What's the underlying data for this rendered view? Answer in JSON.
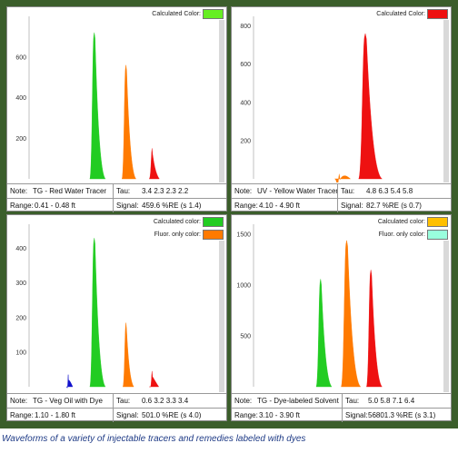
{
  "caption": "Waveforms of a variety of injectable tracers and remedies labeled with dyes",
  "colors": {
    "frame": "#3b5e2b",
    "caption": "#1f3b86",
    "green": "#22cc22",
    "orange": "#ff7a00",
    "red": "#ee1111",
    "blue": "#1111cc",
    "yellow": "#ffc000",
    "cyan": "#99ffdd"
  },
  "panels": [
    {
      "id": "p1",
      "labels": [
        {
          "text": "Calculated Color:",
          "color": "#66ee22"
        }
      ],
      "note_label": "Note:",
      "note": "TG - Red Water Tracer",
      "tau_label": "Tau:",
      "tau": "3.4  2.3  2.3  2.2",
      "range_label": "Range:",
      "range": "0.41 - 0.48 ft",
      "signal_label": "Signal:",
      "signal": "459.6 %RE (s 1.4)",
      "chart_data": {
        "type": "area",
        "yticks": [
          "200",
          "400",
          "600"
        ],
        "ylim": [
          0,
          800
        ],
        "peaks": [
          {
            "color": "#22cc22",
            "center": 0.35,
            "height": 720,
            "width": 0.02
          },
          {
            "color": "#ff7a00",
            "center": 0.52,
            "height": 560,
            "width": 0.018
          },
          {
            "color": "#ee1111",
            "center": 0.66,
            "height": 150,
            "width": 0.013
          }
        ]
      }
    },
    {
      "id": "p2",
      "labels": [
        {
          "text": "Calculated Color:",
          "color": "#ee1111"
        }
      ],
      "note_label": "Note:",
      "note": "UV - Yellow Water Tracer",
      "tau_label": "Tau:",
      "tau": "4.8  6.3  5.4  5.8",
      "range_label": "Range:",
      "range": "4.10 - 4.90 ft",
      "signal_label": "Signal:",
      "signal": "82.7 %RE (s 0.7)",
      "chart_data": {
        "type": "area",
        "yticks": [
          "200",
          "400",
          "600",
          "800"
        ],
        "ylim": [
          0,
          850
        ],
        "peaks": [
          {
            "color": "#ff7a00",
            "center": 0.46,
            "height": 25,
            "width": 0.02
          },
          {
            "color": "#ee1111",
            "center": 0.6,
            "height": 760,
            "width": 0.03
          }
        ]
      }
    },
    {
      "id": "p3",
      "labels": [
        {
          "text": "Calculated color:",
          "color": "#22cc22"
        },
        {
          "text": "Fluor. only color:",
          "color": "#ff7a00"
        }
      ],
      "note_label": "Note:",
      "note": "TG - Veg Oil with Dye",
      "tau_label": "Tau:",
      "tau": "0.6  3.2  3.3  3.4",
      "range_label": "Range:",
      "range": "1.10 - 1.80 ft",
      "signal_label": "Signal:",
      "signal": "501.0 %RE (s 4.0)",
      "chart_data": {
        "type": "area",
        "yticks": [
          "100",
          "200",
          "300",
          "400"
        ],
        "ylim": [
          0,
          470
        ],
        "peaks": [
          {
            "color": "#1111cc",
            "center": 0.21,
            "height": 35,
            "width": 0.008
          },
          {
            "color": "#22cc22",
            "center": 0.35,
            "height": 430,
            "width": 0.02
          },
          {
            "color": "#ff7a00",
            "center": 0.52,
            "height": 185,
            "width": 0.014
          },
          {
            "color": "#ee1111",
            "center": 0.66,
            "height": 45,
            "width": 0.012
          }
        ]
      }
    },
    {
      "id": "p4",
      "labels": [
        {
          "text": "Calculated color:",
          "color": "#ffc000"
        },
        {
          "text": "Fluor. only color:",
          "color": "#99ffdd"
        }
      ],
      "note_label": "Note:",
      "note": "TG - Dye-labeled Solvent",
      "tau_label": "Tau:",
      "tau": "5.0  5.8  7.1  6.4",
      "range_label": "Range:",
      "range": "3.10 - 3.90 ft",
      "signal_label": "Signal:",
      "signal": "56801.3 %RE (s 3.1)",
      "chart_data": {
        "type": "area",
        "yticks": [
          "500",
          "1000",
          "1500"
        ],
        "ylim": [
          0,
          1600
        ],
        "peaks": [
          {
            "color": "#22cc22",
            "center": 0.36,
            "height": 1060,
            "width": 0.02
          },
          {
            "color": "#ff7a00",
            "center": 0.5,
            "height": 1440,
            "width": 0.025
          },
          {
            "color": "#ee1111",
            "center": 0.63,
            "height": 1150,
            "width": 0.02
          }
        ]
      }
    }
  ]
}
